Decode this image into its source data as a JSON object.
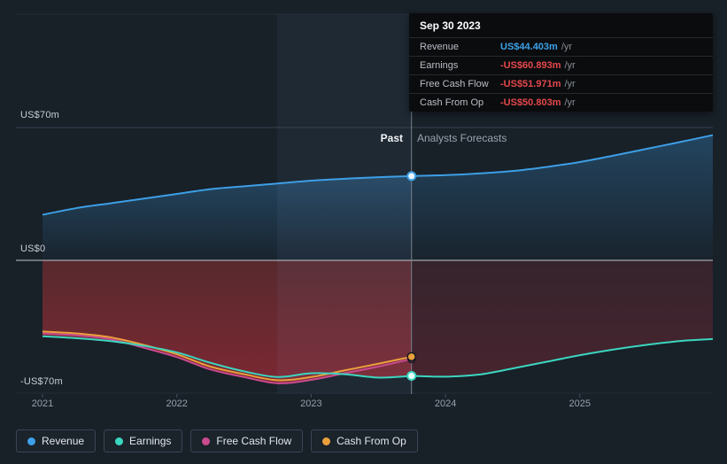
{
  "tooltip": {
    "date": "Sep 30 2023",
    "rows": [
      {
        "label": "Revenue",
        "value": "US$44.403m",
        "suffix": "/yr",
        "color": "#3ca1e8"
      },
      {
        "label": "Earnings",
        "value": "-US$60.893m",
        "suffix": "/yr",
        "color": "#e5484d"
      },
      {
        "label": "Free Cash Flow",
        "value": "-US$51.971m",
        "suffix": "/yr",
        "color": "#e5484d"
      },
      {
        "label": "Cash From Op",
        "value": "-US$50.803m",
        "suffix": "/yr",
        "color": "#e5484d"
      }
    ]
  },
  "labels": {
    "past": "Past",
    "forecast": "Analysts Forecasts"
  },
  "y_axis": {
    "top": "US$70m",
    "zero": "US$0",
    "bottom": "-US$70m"
  },
  "legend": [
    {
      "label": "Revenue",
      "color": "#3ca1e8"
    },
    {
      "label": "Earnings",
      "color": "#3bd6c0"
    },
    {
      "label": "Free Cash Flow",
      "color": "#cb4b8f"
    },
    {
      "label": "Cash From Op",
      "color": "#eba03c"
    }
  ],
  "chart_data": {
    "type": "line",
    "title": "",
    "x_unit": "year",
    "x_ticks": [
      2021,
      2022,
      2023,
      2024,
      2025
    ],
    "xlim": [
      2021.0,
      2026.0
    ],
    "ylim": [
      -70,
      70
    ],
    "y_tick_labels": [
      "US$70m",
      "US$0",
      "-US$70m"
    ],
    "grid": true,
    "legend_position": "bottom",
    "divider_year": 2023.747,
    "divider_date": "Sep 30 2023",
    "highlight_band_years": 1,
    "series": [
      {
        "name": "Revenue",
        "color": "#3d9fe6",
        "unit": "US$m/yr",
        "past": {
          "x": [
            2021.0,
            2021.25,
            2021.5,
            2021.75,
            2022.0,
            2022.25,
            2022.5,
            2022.75,
            2023.0,
            2023.25,
            2023.5,
            2023.747
          ],
          "values": [
            24,
            27.5,
            30,
            32.5,
            35,
            37.5,
            39,
            40.5,
            42,
            43,
            43.8,
            44.403
          ]
        },
        "forecast": {
          "x": [
            2023.747,
            2024.0,
            2024.25,
            2024.5,
            2024.75,
            2025.0,
            2025.25,
            2025.5,
            2025.75,
            2025.99
          ],
          "values": [
            44.403,
            44.9,
            45.8,
            47.1,
            49.2,
            51.8,
            55.2,
            58.8,
            62.4,
            66
          ]
        }
      },
      {
        "name": "Earnings",
        "color": "#3bd6c0",
        "unit": "US$m/yr",
        "past": {
          "x": [
            2021.0,
            2021.25,
            2021.5,
            2021.75,
            2022.0,
            2022.25,
            2022.5,
            2022.75,
            2023.0,
            2023.25,
            2023.5,
            2023.747
          ],
          "values": [
            -40,
            -41,
            -42.5,
            -45,
            -48.5,
            -54,
            -58.5,
            -61.5,
            -59.5,
            -60,
            -61.8,
            -60.893
          ]
        },
        "forecast": {
          "x": [
            2023.747,
            2024.0,
            2024.25,
            2024.5,
            2024.75,
            2025.0,
            2025.25,
            2025.5,
            2025.75,
            2025.99
          ],
          "values": [
            -60.893,
            -61.3,
            -60.2,
            -57,
            -53.5,
            -50,
            -47,
            -44.5,
            -42.5,
            -41.5
          ]
        }
      },
      {
        "name": "Free Cash Flow",
        "color": "#cb4b8f",
        "unit": "US$m/yr",
        "past": {
          "x": [
            2021.0,
            2021.25,
            2021.5,
            2021.75,
            2022.0,
            2022.25,
            2022.5,
            2022.75,
            2023.0,
            2023.25,
            2023.5,
            2023.747
          ],
          "values": [
            -38.5,
            -39.5,
            -41.5,
            -46,
            -51,
            -57.5,
            -61.5,
            -64.8,
            -63,
            -59.5,
            -56,
            -51.971
          ]
        },
        "forecast": null
      },
      {
        "name": "Cash From Op",
        "color": "#eba03c",
        "unit": "US$m/yr",
        "past": {
          "x": [
            2021.0,
            2021.25,
            2021.5,
            2021.75,
            2022.0,
            2022.25,
            2022.5,
            2022.75,
            2023.0,
            2023.25,
            2023.5,
            2023.747
          ],
          "values": [
            -37.5,
            -38.5,
            -40.5,
            -44.5,
            -49.5,
            -56,
            -60,
            -63.2,
            -61.5,
            -58,
            -54.5,
            -50.803
          ]
        },
        "forecast": null
      }
    ]
  }
}
